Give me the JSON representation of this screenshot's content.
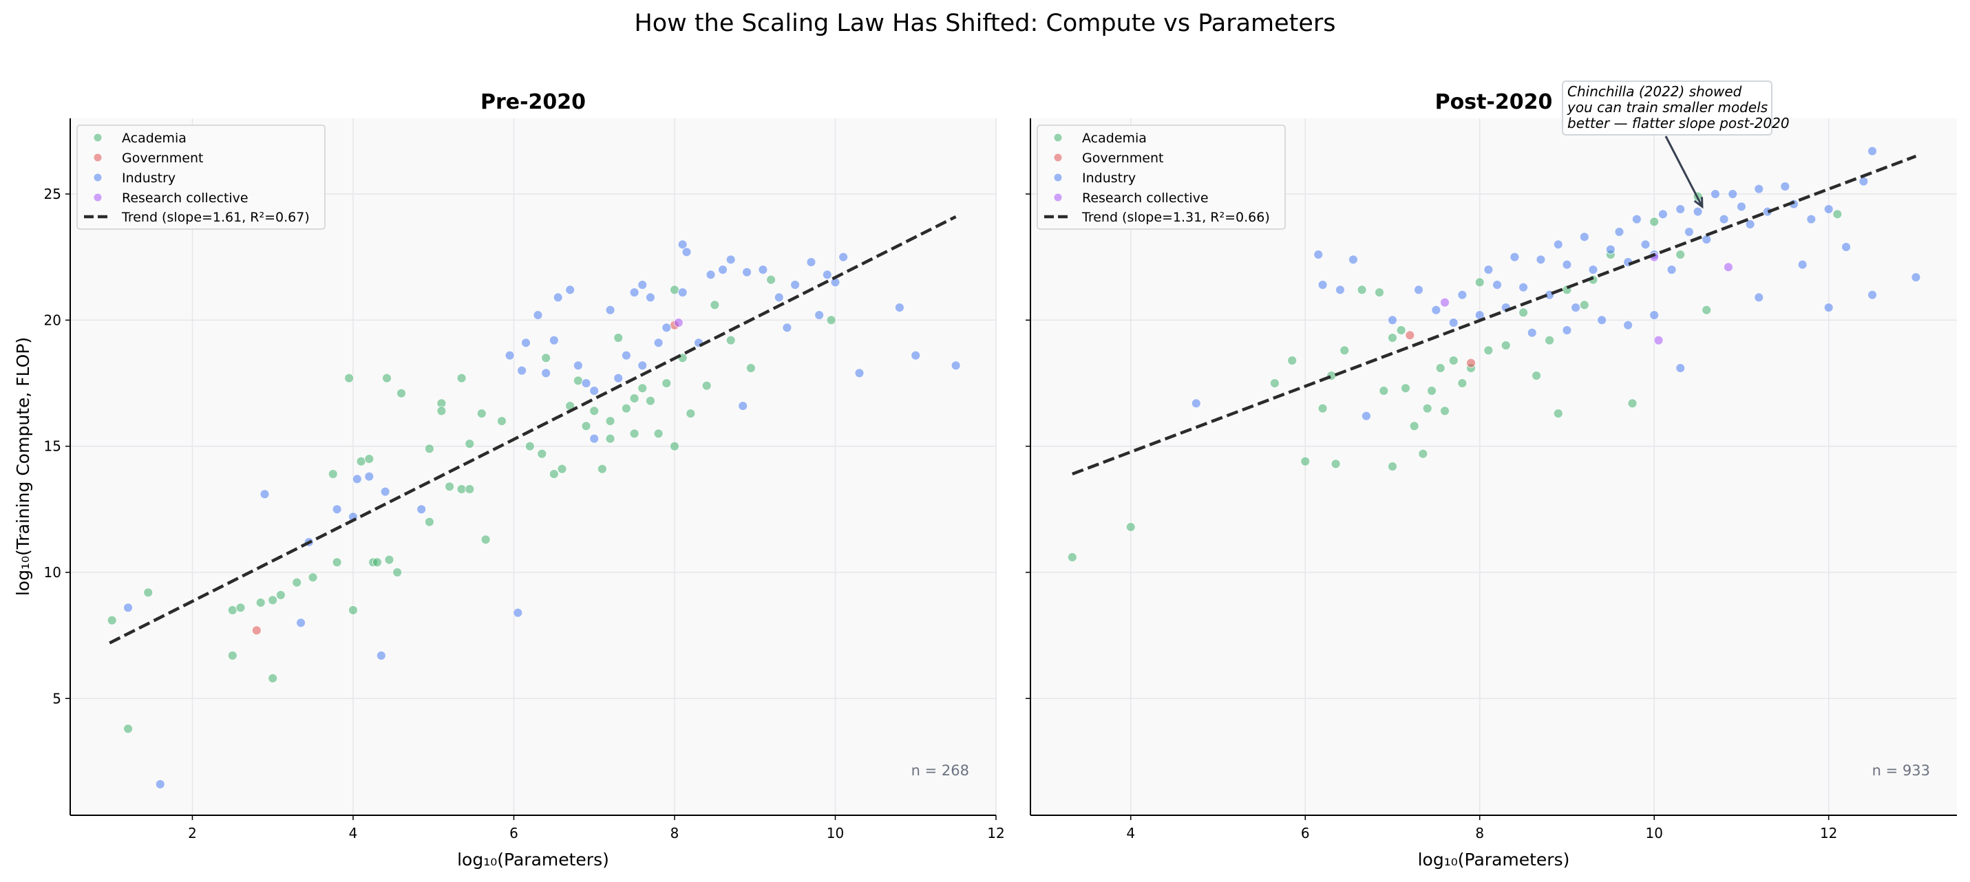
{
  "figure_title": "How the Scaling Law Has Shifted: Compute vs Parameters",
  "colors": {
    "Academia": "#41b06e",
    "Government": "#e05252",
    "Industry": "#4c7ef0",
    "Research collective": "#a855f7",
    "trend": "#2b2b2b",
    "axes_bg": "#f9f9f9",
    "grid": "#e6e6ec"
  },
  "chart_data": [
    {
      "type": "scatter",
      "title": "Pre-2020",
      "xlabel": "log₁₀(Parameters)",
      "ylabel": "log₁₀(Training Compute, FLOP)",
      "xlim": [
        0.48,
        12
      ],
      "ylim": [
        0.37,
        28
      ],
      "xticks": [
        "2",
        "4",
        "6",
        "8",
        "10",
        "12"
      ],
      "yticks": [
        "5",
        "10",
        "15",
        "20",
        "25"
      ],
      "grid": true,
      "legend_position": "top-left",
      "n_label": "n = 268",
      "trend": {
        "label": "Trend (slope=1.61, R²=0.67)",
        "x": [
          0.97,
          11.5
        ],
        "y": [
          7.2,
          24.1
        ]
      },
      "series": [
        {
          "name": "Academia",
          "points": [
            [
              1.0,
              8.1
            ],
            [
              1.2,
              3.8
            ],
            [
              1.45,
              9.2
            ],
            [
              2.5,
              8.5
            ],
            [
              2.5,
              6.7
            ],
            [
              2.6,
              8.6
            ],
            [
              2.85,
              8.8
            ],
            [
              3.0,
              8.9
            ],
            [
              3.0,
              5.8
            ],
            [
              3.1,
              9.1
            ],
            [
              3.3,
              9.6
            ],
            [
              3.5,
              9.8
            ],
            [
              3.75,
              13.9
            ],
            [
              3.8,
              10.4
            ],
            [
              3.95,
              17.7
            ],
            [
              4.0,
              8.5
            ],
            [
              4.1,
              14.4
            ],
            [
              4.2,
              14.5
            ],
            [
              4.25,
              10.4
            ],
            [
              4.3,
              10.4
            ],
            [
              4.42,
              17.7
            ],
            [
              4.45,
              10.5
            ],
            [
              4.55,
              10.0
            ],
            [
              4.6,
              17.1
            ],
            [
              4.95,
              12.0
            ],
            [
              4.95,
              14.9
            ],
            [
              5.1,
              16.7
            ],
            [
              5.1,
              16.4
            ],
            [
              5.2,
              13.4
            ],
            [
              5.35,
              17.7
            ],
            [
              5.35,
              13.3
            ],
            [
              5.45,
              13.3
            ],
            [
              5.45,
              15.1
            ],
            [
              5.6,
              16.3
            ],
            [
              5.65,
              11.3
            ],
            [
              5.85,
              16.0
            ],
            [
              6.2,
              15.0
            ],
            [
              6.35,
              14.7
            ],
            [
              6.4,
              18.5
            ],
            [
              6.5,
              13.9
            ],
            [
              6.6,
              14.1
            ],
            [
              6.7,
              16.6
            ],
            [
              6.8,
              17.6
            ],
            [
              6.9,
              15.8
            ],
            [
              7.0,
              16.4
            ],
            [
              7.1,
              14.1
            ],
            [
              7.2,
              15.3
            ],
            [
              7.2,
              16.0
            ],
            [
              7.3,
              19.3
            ],
            [
              7.4,
              16.5
            ],
            [
              7.5,
              15.5
            ],
            [
              7.5,
              16.9
            ],
            [
              7.6,
              17.3
            ],
            [
              7.7,
              16.8
            ],
            [
              7.8,
              15.5
            ],
            [
              7.9,
              17.5
            ],
            [
              8.0,
              15.0
            ],
            [
              8.0,
              21.2
            ],
            [
              8.1,
              18.5
            ],
            [
              8.2,
              16.3
            ],
            [
              8.4,
              17.4
            ],
            [
              8.5,
              20.6
            ],
            [
              8.7,
              19.2
            ],
            [
              8.95,
              18.1
            ],
            [
              9.2,
              21.6
            ],
            [
              9.95,
              20.0
            ]
          ]
        },
        {
          "name": "Government",
          "points": [
            [
              2.8,
              7.7
            ],
            [
              8.0,
              19.8
            ]
          ]
        },
        {
          "name": "Industry",
          "points": [
            [
              1.2,
              8.6
            ],
            [
              1.6,
              1.6
            ],
            [
              2.9,
              13.1
            ],
            [
              3.35,
              8.0
            ],
            [
              3.45,
              11.2
            ],
            [
              3.8,
              12.5
            ],
            [
              4.0,
              12.2
            ],
            [
              4.05,
              13.7
            ],
            [
              4.2,
              13.8
            ],
            [
              4.35,
              6.7
            ],
            [
              4.4,
              13.2
            ],
            [
              4.85,
              12.5
            ],
            [
              5.95,
              18.6
            ],
            [
              6.05,
              8.4
            ],
            [
              6.1,
              18.0
            ],
            [
              6.15,
              19.1
            ],
            [
              6.3,
              20.2
            ],
            [
              6.4,
              17.9
            ],
            [
              6.5,
              19.2
            ],
            [
              6.55,
              20.9
            ],
            [
              6.7,
              21.2
            ],
            [
              6.8,
              18.2
            ],
            [
              6.9,
              17.5
            ],
            [
              7.0,
              17.2
            ],
            [
              7.0,
              15.3
            ],
            [
              7.2,
              20.4
            ],
            [
              7.3,
              17.7
            ],
            [
              7.4,
              18.6
            ],
            [
              7.5,
              21.1
            ],
            [
              7.6,
              21.4
            ],
            [
              7.6,
              18.2
            ],
            [
              7.7,
              20.9
            ],
            [
              7.8,
              19.1
            ],
            [
              7.9,
              19.7
            ],
            [
              8.1,
              23.0
            ],
            [
              8.15,
              22.7
            ],
            [
              8.1,
              21.1
            ],
            [
              8.3,
              19.1
            ],
            [
              8.45,
              21.8
            ],
            [
              8.6,
              22.0
            ],
            [
              8.7,
              22.4
            ],
            [
              8.85,
              16.6
            ],
            [
              8.9,
              21.9
            ],
            [
              9.1,
              22.0
            ],
            [
              9.3,
              20.9
            ],
            [
              9.4,
              19.7
            ],
            [
              9.5,
              21.4
            ],
            [
              9.7,
              22.3
            ],
            [
              9.8,
              20.2
            ],
            [
              9.9,
              21.8
            ],
            [
              10.0,
              21.5
            ],
            [
              10.1,
              22.5
            ],
            [
              10.3,
              17.9
            ],
            [
              10.8,
              20.5
            ],
            [
              11.0,
              18.6
            ],
            [
              11.5,
              18.2
            ]
          ]
        },
        {
          "name": "Research collective",
          "points": [
            [
              8.05,
              19.9
            ]
          ]
        }
      ]
    },
    {
      "type": "scatter",
      "title": "Post-2020",
      "xlabel": "log₁₀(Parameters)",
      "ylabel": "",
      "xlim": [
        2.85,
        13.47
      ],
      "ylim": [
        0.37,
        28
      ],
      "xticks": [
        "4",
        "6",
        "8",
        "10",
        "12"
      ],
      "yticks": [],
      "grid": true,
      "legend_position": "top-left",
      "n_label": "n = 933",
      "trend": {
        "label": "Trend (slope=1.31, R²=0.66)",
        "x": [
          3.33,
          13.0
        ],
        "y": [
          13.9,
          26.5
        ]
      },
      "annotation": {
        "lines": [
          "Chinchilla (2022) showed",
          "you can train smaller models",
          "better — flatter slope post-2020"
        ],
        "target": [
          10.55,
          24.5
        ]
      },
      "series": [
        {
          "name": "Academia",
          "points": [
            [
              3.33,
              10.6
            ],
            [
              4.0,
              11.8
            ],
            [
              5.65,
              17.5
            ],
            [
              5.85,
              18.4
            ],
            [
              6.0,
              14.4
            ],
            [
              6.2,
              16.5
            ],
            [
              6.3,
              17.8
            ],
            [
              6.35,
              14.3
            ],
            [
              6.45,
              18.8
            ],
            [
              6.65,
              21.2
            ],
            [
              6.85,
              21.1
            ],
            [
              6.9,
              17.2
            ],
            [
              7.0,
              14.2
            ],
            [
              7.0,
              19.3
            ],
            [
              7.1,
              19.6
            ],
            [
              7.15,
              17.3
            ],
            [
              7.25,
              15.8
            ],
            [
              7.35,
              14.7
            ],
            [
              7.4,
              16.5
            ],
            [
              7.45,
              17.2
            ],
            [
              7.55,
              18.1
            ],
            [
              7.6,
              16.4
            ],
            [
              7.7,
              18.4
            ],
            [
              7.8,
              17.5
            ],
            [
              7.9,
              18.1
            ],
            [
              8.0,
              21.5
            ],
            [
              8.1,
              18.8
            ],
            [
              8.3,
              19.0
            ],
            [
              8.5,
              20.3
            ],
            [
              8.65,
              17.8
            ],
            [
              8.8,
              19.2
            ],
            [
              8.9,
              16.3
            ],
            [
              9.0,
              21.2
            ],
            [
              9.2,
              20.6
            ],
            [
              9.3,
              21.6
            ],
            [
              9.5,
              22.6
            ],
            [
              9.75,
              16.7
            ],
            [
              10.0,
              23.9
            ],
            [
              10.3,
              22.6
            ],
            [
              10.5,
              24.9
            ],
            [
              10.6,
              20.4
            ],
            [
              12.1,
              24.2
            ]
          ]
        },
        {
          "name": "Government",
          "points": [
            [
              7.2,
              19.4
            ],
            [
              7.9,
              18.3
            ]
          ]
        },
        {
          "name": "Industry",
          "points": [
            [
              4.75,
              16.7
            ],
            [
              6.15,
              22.6
            ],
            [
              6.2,
              21.4
            ],
            [
              6.4,
              21.2
            ],
            [
              6.55,
              22.4
            ],
            [
              6.7,
              16.2
            ],
            [
              7.0,
              20.0
            ],
            [
              7.3,
              21.2
            ],
            [
              7.5,
              20.4
            ],
            [
              7.7,
              19.9
            ],
            [
              7.8,
              21.0
            ],
            [
              8.0,
              20.2
            ],
            [
              8.1,
              22.0
            ],
            [
              8.2,
              21.4
            ],
            [
              8.3,
              20.5
            ],
            [
              8.4,
              22.5
            ],
            [
              8.5,
              21.3
            ],
            [
              8.6,
              19.5
            ],
            [
              8.7,
              22.4
            ],
            [
              8.8,
              21.0
            ],
            [
              8.9,
              23.0
            ],
            [
              9.0,
              22.2
            ],
            [
              9.0,
              19.6
            ],
            [
              9.1,
              20.5
            ],
            [
              9.2,
              23.3
            ],
            [
              9.3,
              22.0
            ],
            [
              9.4,
              20.0
            ],
            [
              9.5,
              22.8
            ],
            [
              9.6,
              23.5
            ],
            [
              9.7,
              22.3
            ],
            [
              9.7,
              19.8
            ],
            [
              9.8,
              24.0
            ],
            [
              9.9,
              23.0
            ],
            [
              10.0,
              22.6
            ],
            [
              10.0,
              20.2
            ],
            [
              10.1,
              24.2
            ],
            [
              10.2,
              22.0
            ],
            [
              10.3,
              24.4
            ],
            [
              10.3,
              18.1
            ],
            [
              10.4,
              23.5
            ],
            [
              10.5,
              24.3
            ],
            [
              10.6,
              23.2
            ],
            [
              10.7,
              25.0
            ],
            [
              10.8,
              24.0
            ],
            [
              10.9,
              25.0
            ],
            [
              11.0,
              24.5
            ],
            [
              11.1,
              23.8
            ],
            [
              11.2,
              25.2
            ],
            [
              11.2,
              20.9
            ],
            [
              11.3,
              24.3
            ],
            [
              11.5,
              25.3
            ],
            [
              11.6,
              24.6
            ],
            [
              11.7,
              22.2
            ],
            [
              11.8,
              24.0
            ],
            [
              12.0,
              24.4
            ],
            [
              12.0,
              20.5
            ],
            [
              12.2,
              22.9
            ],
            [
              12.4,
              25.5
            ],
            [
              12.5,
              26.7
            ],
            [
              12.5,
              21.0
            ],
            [
              13.0,
              21.7
            ]
          ]
        },
        {
          "name": "Research collective",
          "points": [
            [
              7.6,
              20.7
            ],
            [
              10.0,
              22.5
            ],
            [
              10.05,
              19.2
            ],
            [
              10.85,
              22.1
            ]
          ]
        }
      ]
    }
  ]
}
